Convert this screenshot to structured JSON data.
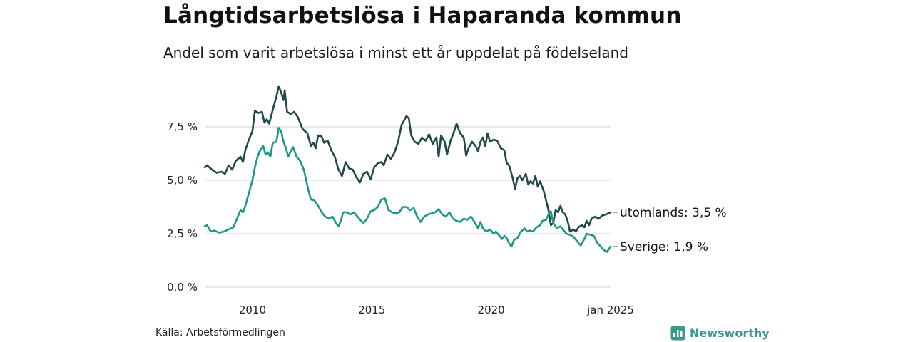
{
  "header": {
    "title": "Långtidsarbetslösa i Haparanda kommun",
    "subtitle": "Andel som varit arbetslösa i minst ett år uppdelat på födelseland"
  },
  "footer": {
    "source": "Källa: Arbetsförmedlingen",
    "brand": "Newsworthy"
  },
  "chart_data": {
    "type": "line",
    "title": "Långtidsarbetslösa i Haparanda kommun",
    "subtitle": "Andel som varit arbetslösa i minst ett år uppdelat på födelseland",
    "xlabel": "",
    "ylabel": "",
    "xlim": [
      2008.0,
      2025.0
    ],
    "ylim": [
      0,
      9.5
    ],
    "y_ticks": [
      {
        "value": 0,
        "label": "0,0 %"
      },
      {
        "value": 2.5,
        "label": "2,5 %"
      },
      {
        "value": 5.0,
        "label": "5,0 %"
      },
      {
        "value": 7.5,
        "label": "7,5 %"
      }
    ],
    "x_ticks": [
      {
        "value": 2010,
        "label": "2010"
      },
      {
        "value": 2015,
        "label": "2015"
      },
      {
        "value": 2020,
        "label": "2020"
      },
      {
        "value": 2025,
        "label": "jan 2025"
      }
    ],
    "grid": true,
    "series": [
      {
        "name": "utomlands",
        "end_label": "utomlands: 3,5 %",
        "color": "#1f4a45",
        "points": [
          [
            2008.0,
            5.6
          ],
          [
            2008.1,
            5.7
          ],
          [
            2008.3,
            5.5
          ],
          [
            2008.5,
            5.35
          ],
          [
            2008.7,
            5.4
          ],
          [
            2008.85,
            5.3
          ],
          [
            2009.0,
            5.7
          ],
          [
            2009.15,
            5.5
          ],
          [
            2009.3,
            5.9
          ],
          [
            2009.5,
            6.1
          ],
          [
            2009.6,
            5.85
          ],
          [
            2009.7,
            6.4
          ],
          [
            2009.85,
            6.9
          ],
          [
            2010.0,
            7.3
          ],
          [
            2010.1,
            8.25
          ],
          [
            2010.25,
            8.15
          ],
          [
            2010.4,
            8.2
          ],
          [
            2010.5,
            7.7
          ],
          [
            2010.6,
            7.85
          ],
          [
            2010.7,
            7.65
          ],
          [
            2010.85,
            8.3
          ],
          [
            2011.0,
            8.9
          ],
          [
            2011.1,
            9.4
          ],
          [
            2011.2,
            9.1
          ],
          [
            2011.3,
            8.75
          ],
          [
            2011.35,
            9.2
          ],
          [
            2011.45,
            8.2
          ],
          [
            2011.6,
            8.1
          ],
          [
            2011.75,
            8.2
          ],
          [
            2011.9,
            7.95
          ],
          [
            2012.1,
            7.4
          ],
          [
            2012.3,
            7.2
          ],
          [
            2012.45,
            6.6
          ],
          [
            2012.55,
            6.75
          ],
          [
            2012.65,
            6.5
          ],
          [
            2012.75,
            7.1
          ],
          [
            2012.9,
            7.05
          ],
          [
            2013.0,
            6.75
          ],
          [
            2013.15,
            6.85
          ],
          [
            2013.3,
            6.4
          ],
          [
            2013.45,
            6.1
          ],
          [
            2013.6,
            5.5
          ],
          [
            2013.75,
            5.2
          ],
          [
            2013.9,
            5.85
          ],
          [
            2014.05,
            5.55
          ],
          [
            2014.2,
            5.5
          ],
          [
            2014.35,
            5.15
          ],
          [
            2014.5,
            4.9
          ],
          [
            2014.65,
            5.3
          ],
          [
            2014.8,
            5.4
          ],
          [
            2014.95,
            5.05
          ],
          [
            2015.1,
            5.6
          ],
          [
            2015.25,
            5.8
          ],
          [
            2015.4,
            5.85
          ],
          [
            2015.5,
            5.7
          ],
          [
            2015.65,
            6.2
          ],
          [
            2015.8,
            6.0
          ],
          [
            2015.95,
            6.3
          ],
          [
            2016.1,
            6.8
          ],
          [
            2016.25,
            7.6
          ],
          [
            2016.35,
            7.8
          ],
          [
            2016.45,
            8.0
          ],
          [
            2016.55,
            7.9
          ],
          [
            2016.65,
            7.1
          ],
          [
            2016.8,
            6.8
          ],
          [
            2016.95,
            6.7
          ],
          [
            2017.1,
            7.0
          ],
          [
            2017.25,
            6.85
          ],
          [
            2017.4,
            7.15
          ],
          [
            2017.55,
            6.7
          ],
          [
            2017.7,
            7.0
          ],
          [
            2017.8,
            6.1
          ],
          [
            2017.9,
            7.1
          ],
          [
            2018.05,
            6.8
          ],
          [
            2018.15,
            6.2
          ],
          [
            2018.3,
            6.85
          ],
          [
            2018.45,
            7.3
          ],
          [
            2018.55,
            7.65
          ],
          [
            2018.7,
            7.2
          ],
          [
            2018.85,
            7.0
          ],
          [
            2018.95,
            6.15
          ],
          [
            2019.05,
            6.5
          ],
          [
            2019.2,
            6.8
          ],
          [
            2019.35,
            6.6
          ],
          [
            2019.45,
            6.35
          ],
          [
            2019.55,
            6.8
          ],
          [
            2019.65,
            7.0
          ],
          [
            2019.75,
            6.6
          ],
          [
            2019.85,
            7.2
          ],
          [
            2019.95,
            6.8
          ],
          [
            2020.1,
            6.9
          ],
          [
            2020.25,
            6.85
          ],
          [
            2020.4,
            6.5
          ],
          [
            2020.55,
            6.4
          ],
          [
            2020.65,
            5.8
          ],
          [
            2020.75,
            5.7
          ],
          [
            2020.9,
            5.1
          ],
          [
            2021.0,
            4.6
          ],
          [
            2021.1,
            5.1
          ],
          [
            2021.2,
            5.2
          ],
          [
            2021.3,
            5.0
          ],
          [
            2021.45,
            5.3
          ],
          [
            2021.55,
            4.8
          ],
          [
            2021.65,
            4.95
          ],
          [
            2021.75,
            4.85
          ],
          [
            2021.85,
            5.2
          ],
          [
            2021.95,
            4.7
          ],
          [
            2022.05,
            4.95
          ],
          [
            2022.2,
            4.5
          ],
          [
            2022.3,
            4.05
          ],
          [
            2022.4,
            3.6
          ],
          [
            2022.5,
            2.9
          ],
          [
            2022.6,
            3.0
          ],
          [
            2022.7,
            3.6
          ],
          [
            2022.8,
            3.5
          ],
          [
            2022.9,
            3.8
          ],
          [
            2023.0,
            3.5
          ],
          [
            2023.1,
            3.4
          ],
          [
            2023.2,
            3.1
          ],
          [
            2023.3,
            2.6
          ],
          [
            2023.45,
            2.7
          ],
          [
            2023.55,
            2.6
          ],
          [
            2023.65,
            2.8
          ],
          [
            2023.8,
            2.9
          ],
          [
            2023.9,
            2.8
          ],
          [
            2024.0,
            3.1
          ],
          [
            2024.1,
            2.9
          ],
          [
            2024.2,
            3.2
          ],
          [
            2024.35,
            3.3
          ],
          [
            2024.5,
            3.2
          ],
          [
            2024.65,
            3.35
          ],
          [
            2024.8,
            3.4
          ],
          [
            2025.0,
            3.5
          ]
        ]
      },
      {
        "name": "Sverige",
        "end_label": "Sverige: 1,9 %",
        "color": "#1c9789",
        "points": [
          [
            2008.0,
            2.85
          ],
          [
            2008.1,
            2.9
          ],
          [
            2008.25,
            2.6
          ],
          [
            2008.4,
            2.65
          ],
          [
            2008.6,
            2.55
          ],
          [
            2008.8,
            2.6
          ],
          [
            2009.0,
            2.7
          ],
          [
            2009.2,
            2.8
          ],
          [
            2009.35,
            3.2
          ],
          [
            2009.5,
            3.6
          ],
          [
            2009.6,
            3.5
          ],
          [
            2009.7,
            3.8
          ],
          [
            2009.85,
            4.4
          ],
          [
            2010.0,
            5.0
          ],
          [
            2010.1,
            5.6
          ],
          [
            2010.2,
            6.05
          ],
          [
            2010.3,
            6.35
          ],
          [
            2010.45,
            6.6
          ],
          [
            2010.55,
            6.2
          ],
          [
            2010.65,
            6.3
          ],
          [
            2010.75,
            6.1
          ],
          [
            2010.85,
            6.75
          ],
          [
            2011.0,
            6.8
          ],
          [
            2011.1,
            7.45
          ],
          [
            2011.2,
            7.3
          ],
          [
            2011.3,
            6.8
          ],
          [
            2011.4,
            6.5
          ],
          [
            2011.5,
            6.1
          ],
          [
            2011.6,
            6.35
          ],
          [
            2011.7,
            6.55
          ],
          [
            2011.85,
            6.1
          ],
          [
            2012.0,
            5.9
          ],
          [
            2012.15,
            5.5
          ],
          [
            2012.25,
            5.0
          ],
          [
            2012.35,
            4.5
          ],
          [
            2012.45,
            4.1
          ],
          [
            2012.6,
            4.05
          ],
          [
            2012.75,
            3.8
          ],
          [
            2012.9,
            3.5
          ],
          [
            2013.05,
            3.3
          ],
          [
            2013.2,
            3.2
          ],
          [
            2013.35,
            3.3
          ],
          [
            2013.5,
            3.0
          ],
          [
            2013.6,
            2.85
          ],
          [
            2013.7,
            3.1
          ],
          [
            2013.8,
            3.5
          ],
          [
            2013.95,
            3.5
          ],
          [
            2014.1,
            3.4
          ],
          [
            2014.25,
            3.5
          ],
          [
            2014.4,
            3.3
          ],
          [
            2014.55,
            3.1
          ],
          [
            2014.65,
            3.0
          ],
          [
            2014.8,
            3.2
          ],
          [
            2014.95,
            3.55
          ],
          [
            2015.1,
            3.6
          ],
          [
            2015.25,
            3.75
          ],
          [
            2015.4,
            4.1
          ],
          [
            2015.55,
            4.15
          ],
          [
            2015.7,
            3.6
          ],
          [
            2015.85,
            3.5
          ],
          [
            2016.0,
            3.45
          ],
          [
            2016.15,
            3.5
          ],
          [
            2016.3,
            3.75
          ],
          [
            2016.45,
            3.75
          ],
          [
            2016.6,
            3.6
          ],
          [
            2016.75,
            3.7
          ],
          [
            2016.9,
            3.3
          ],
          [
            2017.05,
            3.05
          ],
          [
            2017.2,
            3.3
          ],
          [
            2017.35,
            3.4
          ],
          [
            2017.5,
            3.45
          ],
          [
            2017.65,
            3.5
          ],
          [
            2017.8,
            3.65
          ],
          [
            2017.95,
            3.4
          ],
          [
            2018.1,
            3.3
          ],
          [
            2018.25,
            3.5
          ],
          [
            2018.4,
            3.2
          ],
          [
            2018.55,
            3.1
          ],
          [
            2018.7,
            3.05
          ],
          [
            2018.85,
            3.2
          ],
          [
            2019.0,
            3.15
          ],
          [
            2019.15,
            3.3
          ],
          [
            2019.3,
            3.05
          ],
          [
            2019.45,
            2.75
          ],
          [
            2019.55,
            3.05
          ],
          [
            2019.65,
            2.75
          ],
          [
            2019.8,
            2.6
          ],
          [
            2019.95,
            2.7
          ],
          [
            2020.1,
            2.5
          ],
          [
            2020.2,
            2.6
          ],
          [
            2020.35,
            2.4
          ],
          [
            2020.45,
            2.25
          ],
          [
            2020.55,
            2.4
          ],
          [
            2020.65,
            2.3
          ],
          [
            2020.75,
            2.05
          ],
          [
            2020.85,
            1.9
          ],
          [
            2020.95,
            2.2
          ],
          [
            2021.1,
            2.3
          ],
          [
            2021.25,
            2.6
          ],
          [
            2021.4,
            2.75
          ],
          [
            2021.5,
            2.6
          ],
          [
            2021.6,
            2.65
          ],
          [
            2021.75,
            2.6
          ],
          [
            2021.9,
            2.8
          ],
          [
            2022.05,
            2.9
          ],
          [
            2022.15,
            3.1
          ],
          [
            2022.3,
            3.15
          ],
          [
            2022.4,
            3.4
          ],
          [
            2022.5,
            3.55
          ],
          [
            2022.6,
            3.0
          ],
          [
            2022.75,
            2.75
          ],
          [
            2022.9,
            2.85
          ],
          [
            2023.0,
            2.7
          ],
          [
            2023.15,
            2.5
          ],
          [
            2023.3,
            2.45
          ],
          [
            2023.45,
            2.35
          ],
          [
            2023.6,
            2.15
          ],
          [
            2023.75,
            1.95
          ],
          [
            2023.9,
            2.25
          ],
          [
            2024.0,
            2.5
          ],
          [
            2024.15,
            2.45
          ],
          [
            2024.3,
            2.4
          ],
          [
            2024.45,
            2.05
          ],
          [
            2024.55,
            1.95
          ],
          [
            2024.7,
            1.75
          ],
          [
            2024.85,
            1.65
          ],
          [
            2025.0,
            1.9
          ]
        ]
      }
    ]
  }
}
